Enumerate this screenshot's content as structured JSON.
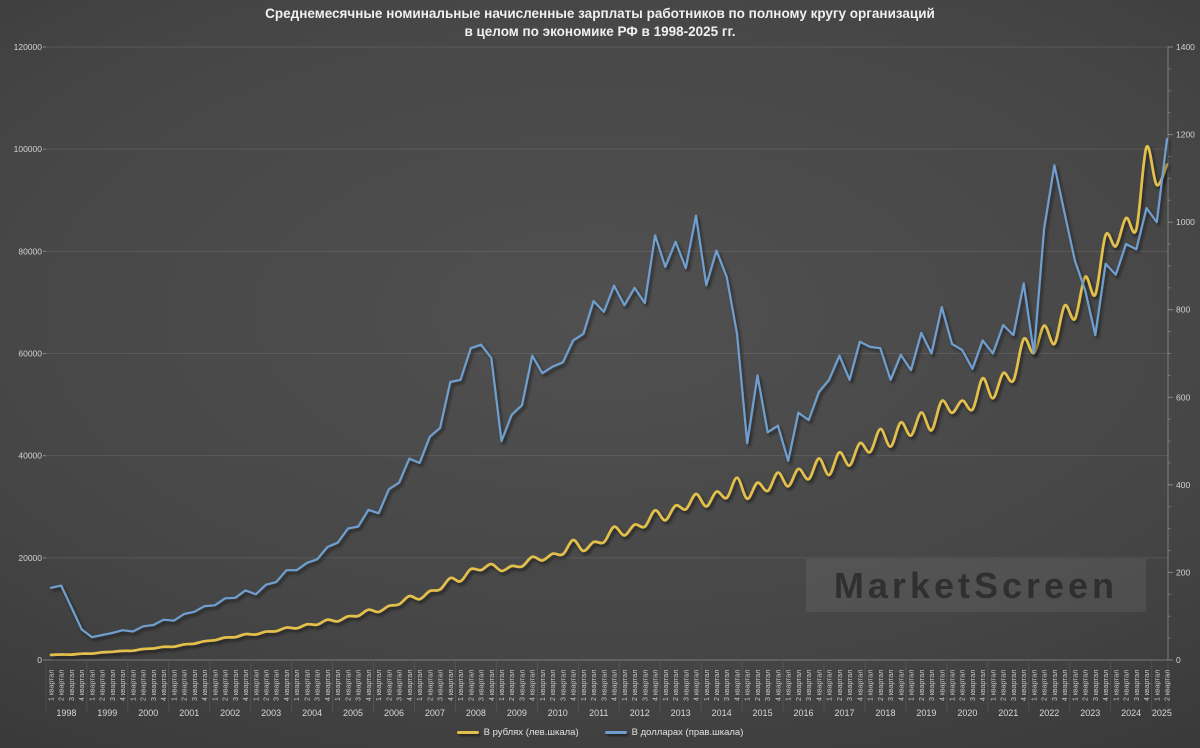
{
  "title": {
    "line1": "Среднемесячные номинальные начисленные зарплаты работников по полному кругу организаций",
    "line2": "в целом по экономике РФ в 1998-2025 гг."
  },
  "watermark": {
    "text": "MarketScreen"
  },
  "legend": {
    "position": "bottom-center",
    "items": [
      {
        "label": "В рублях (лев.шкала)",
        "color": "#e3c04c"
      },
      {
        "label": "В долларах (прав.шкала)",
        "color": "#6f9fcf"
      }
    ]
  },
  "colors": {
    "background_center": "#4f4f4f",
    "background_edge": "#2c2c2c",
    "gridline": "rgba(255,255,255,0.10)",
    "axis_line": "rgba(255,255,255,0.30)",
    "tick_label": "#d2d2d2",
    "quarter_label": "#c6c6c6",
    "year_label": "#d8d8d8",
    "title_text": "#f0f0f0",
    "series_rubles": "#e3c04c",
    "series_dollars": "#6f9fcf"
  },
  "chart_data": {
    "type": "line",
    "title": "Среднемесячные номинальные начисленные зарплаты работников по полному кругу организаций в целом по экономике РФ в 1998-2025 гг.",
    "grid": true,
    "legend_position": "bottom",
    "x_axis": {
      "unit": "quarter",
      "quarter_names": [
        "1 квартал",
        "2 квартал",
        "3 квартал",
        "4 квартал"
      ],
      "years": [
        1998,
        1999,
        2000,
        2001,
        2002,
        2003,
        2004,
        2005,
        2006,
        2007,
        2008,
        2009,
        2010,
        2011,
        2012,
        2013,
        2014,
        2015,
        2016,
        2017,
        2018,
        2019,
        2020,
        2021,
        2022,
        2023,
        2024,
        2025
      ],
      "quarters_in_last_year": 2,
      "total_points": 110
    },
    "left_axis": {
      "min": 0,
      "max": 120000,
      "step": 20000,
      "ticks": [
        0,
        20000,
        40000,
        60000,
        80000,
        100000,
        120000
      ]
    },
    "right_axis": {
      "min": 0,
      "max": 1400,
      "step": 200,
      "ticks": [
        0,
        200,
        400,
        600,
        800,
        1000,
        1200,
        1400
      ]
    },
    "series": [
      {
        "name": "В рублях (лев.шкала)",
        "axis": "left",
        "color": "#e3c04c",
        "smoothed": true,
        "values": [
          1000,
          1080,
          1050,
          1240,
          1250,
          1500,
          1610,
          1790,
          1830,
          2160,
          2260,
          2580,
          2600,
          3060,
          3200,
          3690,
          3870,
          4410,
          4470,
          5070,
          4990,
          5550,
          5640,
          6340,
          6200,
          6980,
          6920,
          7880,
          7560,
          8560,
          8640,
          9850,
          9400,
          10600,
          10900,
          12500,
          11900,
          13500,
          13800,
          16050,
          15400,
          17800,
          17600,
          18800,
          17440,
          18400,
          18300,
          20200,
          19500,
          20800,
          20700,
          23500,
          21350,
          23100,
          23050,
          26100,
          24400,
          26500,
          26100,
          29300,
          27340,
          30250,
          29500,
          32500,
          30060,
          32960,
          31730,
          35690,
          31570,
          34700,
          33080,
          36690,
          34000,
          37400,
          35400,
          39450,
          36210,
          40640,
          38080,
          42460,
          40690,
          45230,
          41770,
          46520,
          43940,
          48450,
          44960,
          50730,
          48390,
          50780,
          49020,
          55170,
          51230,
          56170,
          54690,
          62830,
          60100,
          65470,
          61880,
          69380,
          66780,
          75000,
          71550,
          83180,
          81000,
          86500,
          84300,
          100400,
          93000,
          97000
        ]
      },
      {
        "name": "В долларах (прав.шкала)",
        "axis": "right",
        "color": "#6f9fcf",
        "smoothed": false,
        "values": [
          165,
          170,
          120,
          70,
          52,
          57,
          62,
          68,
          65,
          77,
          80,
          92,
          90,
          105,
          110,
          123,
          125,
          141,
          142,
          159,
          150,
          172,
          178,
          205,
          205,
          222,
          230,
          258,
          268,
          300,
          305,
          343,
          335,
          390,
          405,
          460,
          450,
          510,
          530,
          635,
          640,
          712,
          720,
          690,
          500,
          560,
          582,
          695,
          655,
          670,
          680,
          730,
          745,
          820,
          795,
          855,
          810,
          850,
          815,
          970,
          898,
          955,
          895,
          1015,
          856,
          935,
          875,
          745,
          495,
          650,
          520,
          535,
          455,
          565,
          548,
          612,
          640,
          695,
          640,
          727,
          715,
          712,
          640,
          697,
          662,
          747,
          700,
          806,
          722,
          708,
          665,
          730,
          700,
          765,
          742,
          860,
          700,
          985,
          1130,
          1020,
          912,
          845,
          742,
          905,
          880,
          950,
          938,
          1032,
          1000,
          1190
        ]
      }
    ]
  }
}
